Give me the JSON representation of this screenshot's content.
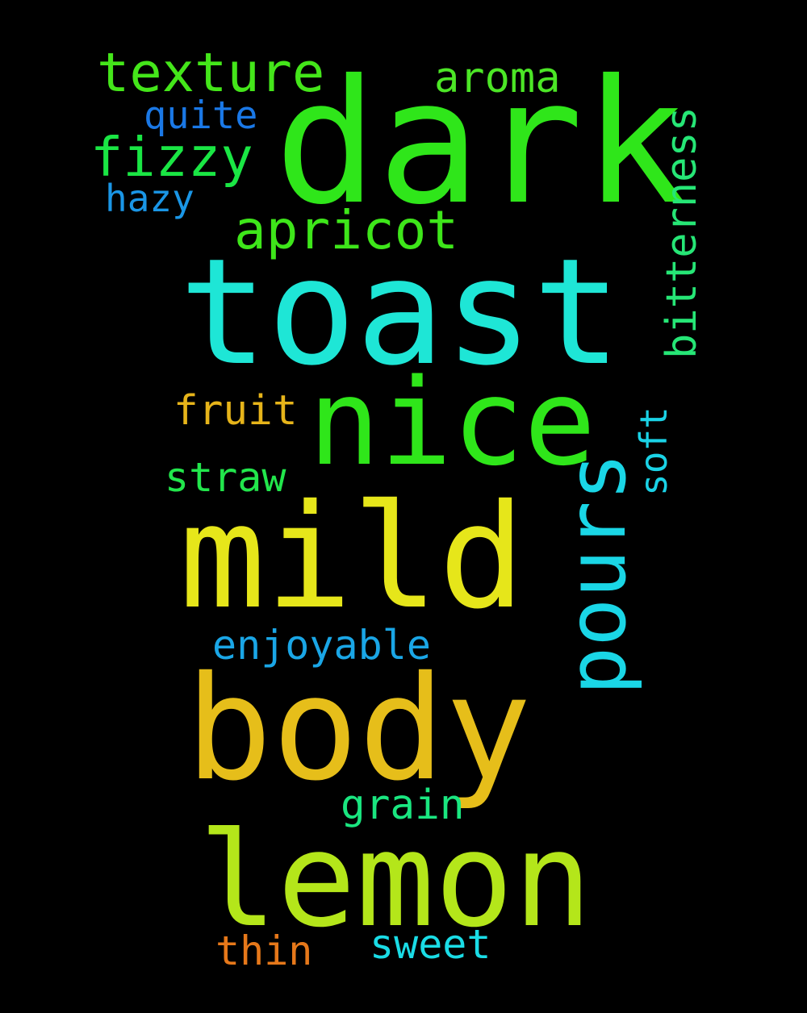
{
  "background": "#000000",
  "words": [
    {
      "id": "dark",
      "text": "dark",
      "color": "#2fe61a"
    },
    {
      "id": "toast",
      "text": "toast",
      "color": "#1ee6d6"
    },
    {
      "id": "nice",
      "text": "nice",
      "color": "#2fe61a"
    },
    {
      "id": "mild",
      "text": "mild",
      "color": "#e6e61a"
    },
    {
      "id": "body",
      "text": "body",
      "color": "#e6be1a"
    },
    {
      "id": "lemon",
      "text": "lemon",
      "color": "#b4e61a"
    },
    {
      "id": "pours",
      "text": "pours",
      "color": "#1ad6e6"
    },
    {
      "id": "texture",
      "text": "texture",
      "color": "#44e61a"
    },
    {
      "id": "aroma",
      "text": "aroma",
      "color": "#4ce626"
    },
    {
      "id": "quite",
      "text": "quite",
      "color": "#1a78e6"
    },
    {
      "id": "fizzy",
      "text": "fizzy",
      "color": "#1ae644"
    },
    {
      "id": "hazy",
      "text": "hazy",
      "color": "#1a96e6"
    },
    {
      "id": "apricot",
      "text": "apricot",
      "color": "#3ee61a"
    },
    {
      "id": "bitterness",
      "text": "bitterness",
      "color": "#26e676"
    },
    {
      "id": "fruit",
      "text": "fruit",
      "color": "#e6b41a"
    },
    {
      "id": "soft",
      "text": "soft",
      "color": "#1ad2e6"
    },
    {
      "id": "straw",
      "text": "straw",
      "color": "#22e64c"
    },
    {
      "id": "enjoyable",
      "text": "enjoyable",
      "color": "#1aa6e6"
    },
    {
      "id": "grain",
      "text": "grain",
      "color": "#1ae680"
    },
    {
      "id": "thin",
      "text": "thin",
      "color": "#e6781a"
    },
    {
      "id": "sweet",
      "text": "sweet",
      "color": "#1adce6"
    }
  ]
}
